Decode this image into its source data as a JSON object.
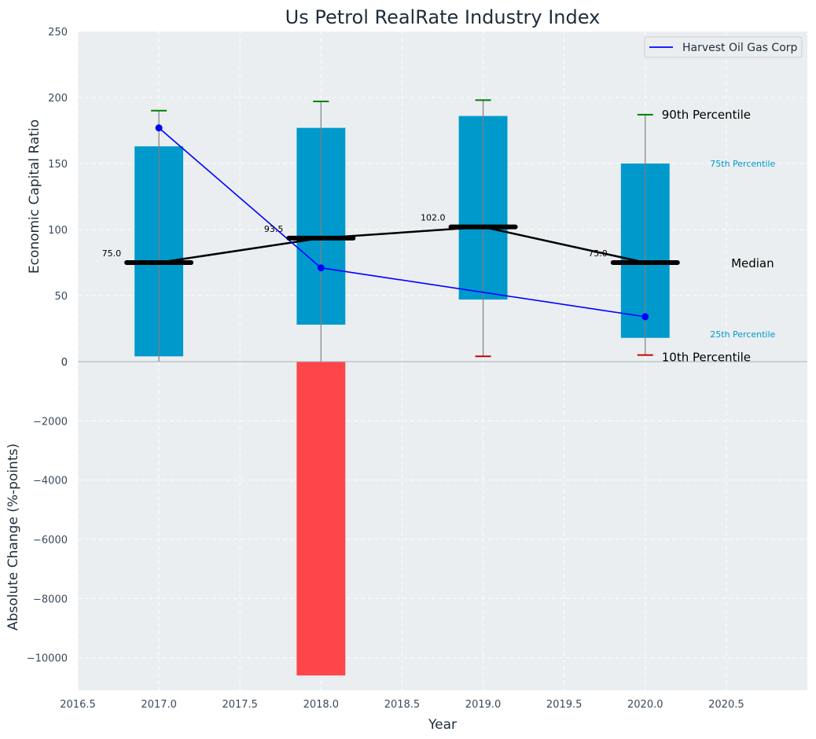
{
  "chart_data": [
    {
      "type": "box",
      "title": "Us Petrol RealRate Industry Index",
      "xlabel": "",
      "ylabel": "Economic Capital Ratio",
      "ylim": [
        0,
        250
      ],
      "yticks": [
        0,
        50,
        100,
        150,
        200,
        250
      ],
      "grid": true,
      "legend_position": "top-right",
      "categories": [
        2017,
        2018,
        2019,
        2020
      ],
      "p10": [
        -20,
        -20,
        4,
        5
      ],
      "p25": [
        4,
        28,
        47,
        18
      ],
      "median": [
        75.0,
        93.5,
        102.0,
        75.0
      ],
      "p75": [
        163,
        177,
        186,
        150
      ],
      "p90": [
        190,
        197,
        198,
        187
      ],
      "median_labels": [
        "75.0",
        "93.5",
        "102.0",
        "75.0"
      ],
      "series": [
        {
          "name": "Harvest Oil Gas Corp",
          "x": [
            2017,
            2018,
            2020
          ],
          "values": [
            177,
            71,
            34
          ],
          "color": "#0000ff"
        }
      ],
      "annotations": [
        "90th Percentile",
        "75th Percentile",
        "Median",
        "25th Percentile",
        "10th Percentile"
      ],
      "colors": {
        "box": "#0099cc",
        "median": "#000000",
        "p90_cap": "#008000",
        "p10_cap": "#cc0000",
        "whisker": "#808080",
        "anno_box": "#0099cc"
      }
    },
    {
      "type": "bar",
      "xlabel": "Year",
      "ylabel": "Absolute Change (%-points)",
      "ylim": [
        -11100,
        0
      ],
      "yticks": [
        0,
        -2000,
        -4000,
        -6000,
        -8000,
        -10000
      ],
      "xlim": [
        2016.5,
        2021.0
      ],
      "xticks": [
        2016.5,
        2017.0,
        2017.5,
        2018.0,
        2018.5,
        2019.0,
        2019.5,
        2020.0,
        2020.5
      ],
      "grid": true,
      "categories": [
        2018
      ],
      "values": [
        -10600
      ],
      "color": "#ff3b3f"
    }
  ]
}
